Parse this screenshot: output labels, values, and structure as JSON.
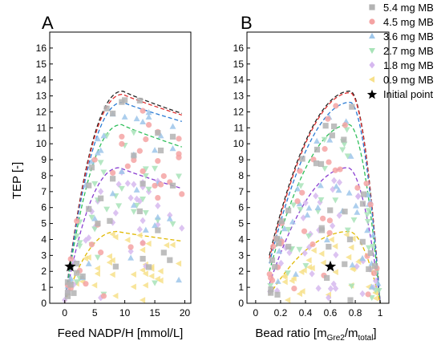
{
  "colors": {
    "5.4 mg MB": "#b3b3b3",
    "4.5 mg MB": "#f4a3a3",
    "3.6 mg MB": "#9ec6ea",
    "2.7 mg MB": "#a8e3b8",
    "1.8 mg MB": "#d6b8ef",
    "0.9 mg MB": "#f7e08a",
    "dashed_5.4": "#222222",
    "dashed_4.5": "#e03030",
    "dashed_3.6": "#2a7bd4",
    "dashed_2.7": "#2fbf5a",
    "dashed_1.8": "#8a3fd1",
    "dashed_0.9": "#e0b800"
  },
  "legend": {
    "placement": "top-right",
    "entries": [
      {
        "label": "5.4 mg MB",
        "marker": "square"
      },
      {
        "label": "4.5 mg MB",
        "marker": "circle"
      },
      {
        "label": "3.6 mg MB",
        "marker": "triangle-up"
      },
      {
        "label": "2.7 mg MB",
        "marker": "triangle-down"
      },
      {
        "label": "1.8 mg MB",
        "marker": "diamond"
      },
      {
        "label": "0.9 mg MB",
        "marker": "triangle-left"
      },
      {
        "label": "Initial point",
        "marker": "star"
      }
    ]
  },
  "chart_data": [
    {
      "type": "scatter",
      "panel_label": "A",
      "xlabel": "Feed NADP/H [mmol/L]",
      "ylabel": "TEP [-]",
      "xlim": [
        -2.5,
        21
      ],
      "ylim": [
        0,
        17
      ],
      "xticks": [
        0,
        5,
        10,
        15,
        20
      ],
      "yticks": [
        0,
        1,
        2,
        3,
        4,
        5,
        6,
        7,
        8,
        9,
        10,
        11,
        12,
        13,
        14,
        15,
        16
      ],
      "grid": false,
      "initial_point": {
        "x": 0.9,
        "y": 2.3
      },
      "series": [
        {
          "name": "5.4 mg MB",
          "fit_peak": {
            "x": 9.7,
            "y": 13.3
          },
          "fit_end": {
            "x": 19.5,
            "y": 11.9
          }
        },
        {
          "name": "4.5 mg MB",
          "fit_peak": {
            "x": 9.7,
            "y": 13.1
          },
          "fit_end": {
            "x": 19.5,
            "y": 11.8
          }
        },
        {
          "name": "3.6 mg MB",
          "fit_peak": {
            "x": 9.7,
            "y": 12.6
          },
          "fit_end": {
            "x": 19.5,
            "y": 11.4
          }
        },
        {
          "name": "2.7 mg MB",
          "fit_peak": {
            "x": 9.5,
            "y": 11.2
          },
          "fit_end": {
            "x": 19.5,
            "y": 9.8
          }
        },
        {
          "name": "1.8 mg MB",
          "fit_peak": {
            "x": 9.2,
            "y": 8.5
          },
          "fit_end": {
            "x": 19.5,
            "y": 7.2
          }
        },
        {
          "name": "0.9 mg MB",
          "fit_peak": {
            "x": 8.8,
            "y": 4.5
          },
          "fit_end": {
            "x": 19.5,
            "y": 3.9
          }
        }
      ]
    },
    {
      "type": "scatter",
      "panel_label": "B",
      "xlabel": "Bead ratio [m",
      "xlabel_sub1": "Gre2",
      "xlabel_mid": "/m",
      "xlabel_sub2": "total",
      "xlabel_end": "]",
      "xlim": [
        -0.07,
        1.07
      ],
      "ylim": [
        0,
        17
      ],
      "xticks": [
        0,
        0.2,
        0.4,
        0.6,
        0.8,
        1
      ],
      "yticks": [
        0,
        1,
        2,
        3,
        4,
        5,
        6,
        7,
        8,
        9,
        10,
        11,
        12,
        13,
        14,
        15,
        16
      ],
      "grid": false,
      "initial_point": {
        "x": 0.6,
        "y": 2.3
      },
      "series": [
        {
          "name": "5.4 mg MB",
          "fit_start": {
            "x": 0.11,
            "y": 3.0
          },
          "fit_peak": {
            "x": 0.76,
            "y": 13.3
          },
          "fit_end": {
            "x": 1.0,
            "y": 0.0
          }
        },
        {
          "name": "4.5 mg MB",
          "fit_start": {
            "x": 0.11,
            "y": 2.8
          },
          "fit_peak": {
            "x": 0.76,
            "y": 13.2
          },
          "fit_end": {
            "x": 1.0,
            "y": 0.0
          }
        },
        {
          "name": "3.6 mg MB",
          "fit_start": {
            "x": 0.11,
            "y": 2.5
          },
          "fit_peak": {
            "x": 0.76,
            "y": 12.6
          },
          "fit_end": {
            "x": 1.0,
            "y": 0.0
          }
        },
        {
          "name": "2.7 mg MB",
          "fit_start": {
            "x": 0.11,
            "y": 2.0
          },
          "fit_peak": {
            "x": 0.75,
            "y": 11.2
          },
          "fit_end": {
            "x": 1.0,
            "y": 0.0
          }
        },
        {
          "name": "1.8 mg MB",
          "fit_start": {
            "x": 0.11,
            "y": 1.2
          },
          "fit_peak": {
            "x": 0.74,
            "y": 8.5
          },
          "fit_end": {
            "x": 1.0,
            "y": 0.0
          }
        },
        {
          "name": "0.9 mg MB",
          "fit_start": {
            "x": 0.11,
            "y": 0.5
          },
          "fit_peak": {
            "x": 0.75,
            "y": 4.5
          },
          "fit_end": {
            "x": 1.0,
            "y": 0.0
          }
        }
      ]
    }
  ]
}
